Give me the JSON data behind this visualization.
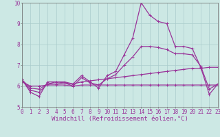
{
  "xlabel": "Windchill (Refroidissement éolien,°C)",
  "bg_color": "#cce8e4",
  "line_color": "#993399",
  "grid_color": "#aacccc",
  "axis_color": "#777777",
  "xlim": [
    0,
    23
  ],
  "ylim": [
    5,
    10
  ],
  "yticks": [
    5,
    6,
    7,
    8,
    9,
    10
  ],
  "xticks": [
    0,
    1,
    2,
    3,
    4,
    5,
    6,
    7,
    8,
    9,
    10,
    11,
    12,
    13,
    14,
    15,
    16,
    17,
    18,
    19,
    20,
    21,
    22,
    23
  ],
  "series": [
    [
      6.3,
      5.7,
      5.5,
      6.2,
      6.2,
      6.2,
      6.1,
      6.5,
      6.2,
      5.9,
      6.5,
      6.7,
      7.5,
      8.3,
      10.0,
      9.4,
      9.1,
      9.0,
      7.9,
      7.9,
      7.8,
      6.9,
      5.6,
      6.1
    ],
    [
      6.3,
      5.9,
      5.85,
      6.1,
      6.1,
      6.15,
      6.1,
      6.2,
      6.25,
      6.3,
      6.35,
      6.4,
      6.45,
      6.5,
      6.55,
      6.6,
      6.65,
      6.7,
      6.75,
      6.8,
      6.85,
      6.85,
      6.9,
      6.9
    ],
    [
      6.3,
      5.8,
      5.7,
      6.1,
      6.2,
      6.15,
      6.0,
      6.4,
      6.15,
      6.05,
      6.35,
      6.55,
      7.0,
      7.4,
      7.9,
      7.9,
      7.85,
      7.75,
      7.55,
      7.55,
      7.5,
      6.95,
      5.85,
      6.1
    ],
    [
      6.2,
      6.0,
      6.0,
      6.05,
      6.05,
      6.05,
      6.0,
      6.05,
      6.05,
      6.05,
      6.05,
      6.05,
      6.05,
      6.05,
      6.05,
      6.05,
      6.05,
      6.05,
      6.05,
      6.05,
      6.05,
      6.05,
      6.05,
      6.05
    ]
  ],
  "linewidth": 0.9,
  "markersize": 3,
  "tick_fontsize": 5.5,
  "label_fontsize": 6.5
}
